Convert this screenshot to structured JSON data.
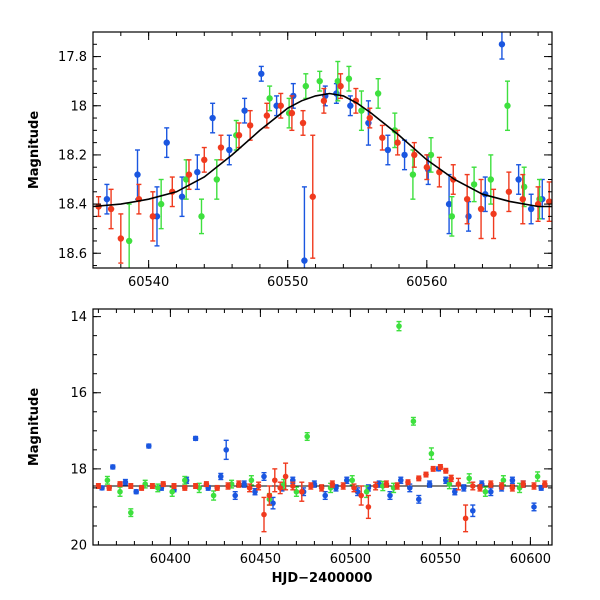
{
  "chart_data": [
    {
      "type": "scatter",
      "panel": "top",
      "title": "",
      "xlabel": "",
      "ylabel": "Magnitude",
      "xlim": [
        60536,
        60569
      ],
      "ylim": [
        18.66,
        17.7
      ],
      "y_inverted": true,
      "x_ticks": [
        60540,
        60550,
        60560
      ],
      "x_tick_labels": [
        "60540",
        "60550",
        "60560"
      ],
      "y_ticks": [
        17.8,
        18.0,
        18.2,
        18.4,
        18.6
      ],
      "y_tick_labels": [
        "17.8",
        "18",
        "18.2",
        "18.4",
        "18.6"
      ],
      "colors": {
        "blue": "#1a56e0",
        "green": "#3ee03e",
        "red": "#f03a1e",
        "model": "#000000"
      },
      "model_curve": {
        "x": [
          60536,
          60538,
          60540,
          60542,
          60544,
          60546,
          60548,
          60550,
          60551,
          60552,
          60553,
          60554,
          60555,
          60556,
          60558,
          60560,
          60562,
          60564,
          60566,
          60568,
          60569
        ],
        "y": [
          18.41,
          18.4,
          18.38,
          18.35,
          18.29,
          18.2,
          18.1,
          18.01,
          17.98,
          17.96,
          17.95,
          17.96,
          17.99,
          18.03,
          18.12,
          18.22,
          18.3,
          18.36,
          18.39,
          18.41,
          18.41
        ]
      },
      "series": [
        {
          "color": "blue",
          "x": [
            60537.0,
            60539.2,
            60540.6,
            60541.3,
            60542.4,
            60543.5,
            60544.6,
            60545.8,
            60546.9,
            60548.1,
            60549.2,
            60550.4,
            60551.2,
            60552.7,
            60553.5,
            60554.5,
            60555.8,
            60557.2,
            60558.4,
            60560.1,
            60561.6,
            60563.0,
            60564.2,
            60565.4,
            60566.6,
            60567.5,
            60568.3
          ],
          "y": [
            18.38,
            18.28,
            18.45,
            18.15,
            18.37,
            18.27,
            18.05,
            18.18,
            18.02,
            17.87,
            18.0,
            17.96,
            18.63,
            17.96,
            17.95,
            18.0,
            18.07,
            18.18,
            18.2,
            18.26,
            18.4,
            18.45,
            18.36,
            17.75,
            18.3,
            18.42,
            18.38
          ],
          "err": [
            0.06,
            0.1,
            0.12,
            0.06,
            0.08,
            0.07,
            0.06,
            0.06,
            0.05,
            0.03,
            0.04,
            0.05,
            0.3,
            0.04,
            0.04,
            0.04,
            0.09,
            0.06,
            0.06,
            0.06,
            0.12,
            0.06,
            0.07,
            0.06,
            0.06,
            0.06,
            0.08
          ]
        },
        {
          "color": "green",
          "x": [
            60538.6,
            60540.9,
            60542.7,
            60543.8,
            60544.9,
            60546.3,
            60548.7,
            60550.1,
            60551.3,
            60552.3,
            60553.6,
            60554.4,
            60555.3,
            60556.5,
            60557.7,
            60559.0,
            60560.3,
            60561.8,
            60563.4,
            60564.6,
            60565.8,
            60567.0,
            60568.1
          ],
          "y": [
            18.55,
            18.4,
            18.3,
            18.45,
            18.3,
            18.12,
            17.97,
            18.03,
            17.92,
            17.9,
            17.9,
            17.89,
            18.02,
            17.95,
            18.1,
            18.28,
            18.2,
            18.45,
            18.32,
            18.3,
            18.0,
            18.33,
            18.38
          ],
          "err": [
            0.15,
            0.1,
            0.08,
            0.07,
            0.08,
            0.06,
            0.05,
            0.06,
            0.05,
            0.04,
            0.08,
            0.05,
            0.08,
            0.06,
            0.07,
            0.1,
            0.07,
            0.08,
            0.07,
            0.1,
            0.1,
            0.08,
            0.08
          ]
        },
        {
          "color": "red",
          "x": [
            60536.4,
            60537.3,
            60538.0,
            60539.3,
            60540.3,
            60541.7,
            60542.9,
            60544.0,
            60545.2,
            60546.5,
            60547.3,
            60548.5,
            60549.5,
            60550.3,
            60551.1,
            60551.8,
            60552.6,
            60553.8,
            60554.9,
            60555.9,
            60556.8,
            60557.9,
            60559.1,
            60560.0,
            60560.9,
            60561.9,
            60562.9,
            60563.9,
            60564.8,
            60565.9,
            60566.9,
            60568.0,
            60568.8
          ],
          "y": [
            18.41,
            18.42,
            18.54,
            18.38,
            18.45,
            18.35,
            18.28,
            18.22,
            18.17,
            18.12,
            18.08,
            18.04,
            18.0,
            18.03,
            18.07,
            18.37,
            17.98,
            17.92,
            17.98,
            18.05,
            18.13,
            18.15,
            18.2,
            18.25,
            18.27,
            18.3,
            18.38,
            18.42,
            18.44,
            18.35,
            18.38,
            18.4,
            18.39
          ],
          "err": [
            0.04,
            0.08,
            0.1,
            0.06,
            0.1,
            0.06,
            0.06,
            0.05,
            0.05,
            0.05,
            0.06,
            0.05,
            0.05,
            0.07,
            0.05,
            0.25,
            0.05,
            0.05,
            0.05,
            0.04,
            0.05,
            0.05,
            0.05,
            0.05,
            0.06,
            0.06,
            0.1,
            0.12,
            0.1,
            0.08,
            0.1,
            0.07,
            0.08
          ]
        }
      ]
    },
    {
      "type": "scatter",
      "panel": "bottom",
      "title": "",
      "xlabel": "HJD−2400000",
      "ylabel": "Magnitude",
      "xlim": [
        60357,
        60612
      ],
      "ylim": [
        20,
        13.8
      ],
      "y_inverted": true,
      "x_ticks": [
        60400,
        60450,
        60500,
        60550,
        60600
      ],
      "x_tick_labels": [
        "60400",
        "60450",
        "60500",
        "60550",
        "60600"
      ],
      "y_ticks": [
        14,
        16,
        18,
        20
      ],
      "y_tick_labels": [
        "14",
        "16",
        "18",
        "20"
      ],
      "baseline_mag": 18.45,
      "colors": {
        "blue": "#1a56e0",
        "green": "#3ee03e",
        "red": "#f03a1e",
        "model": "#000000"
      },
      "series": [
        {
          "color": "blue",
          "x": [
            60362,
            60368,
            60375,
            60381,
            60388,
            60395,
            60402,
            60409,
            60414,
            60421,
            60428,
            60431,
            60436,
            60441,
            60447,
            60452,
            60457,
            60462,
            60468,
            60474,
            60480,
            60486,
            60492,
            60498,
            60504,
            60510,
            60516,
            60522,
            60528,
            60533,
            60538,
            60544,
            60549,
            60553,
            60558,
            60563,
            60568,
            60573,
            60578,
            60584,
            60590,
            60596,
            60602,
            60606
          ],
          "y": [
            18.5,
            17.95,
            18.35,
            18.6,
            17.4,
            18.5,
            18.55,
            18.3,
            17.2,
            18.5,
            18.2,
            17.5,
            18.7,
            18.4,
            18.6,
            18.2,
            18.9,
            18.5,
            18.3,
            18.6,
            18.4,
            18.7,
            18.5,
            18.3,
            18.6,
            18.5,
            18.4,
            18.7,
            18.3,
            18.5,
            18.8,
            18.4,
            18.0,
            18.3,
            18.6,
            18.5,
            19.1,
            18.4,
            18.6,
            18.5,
            18.3,
            18.4,
            19.0,
            18.5
          ],
          "err": [
            0.05,
            0.05,
            0.07,
            0.05,
            0.05,
            0.06,
            0.05,
            0.08,
            0.05,
            0.06,
            0.08,
            0.25,
            0.1,
            0.08,
            0.08,
            0.1,
            0.15,
            0.08,
            0.08,
            0.1,
            0.08,
            0.1,
            0.08,
            0.08,
            0.1,
            0.08,
            0.08,
            0.1,
            0.08,
            0.1,
            0.1,
            0.08,
            0.05,
            0.08,
            0.08,
            0.08,
            0.15,
            0.08,
            0.1,
            0.08,
            0.08,
            0.08,
            0.1,
            0.06
          ]
        },
        {
          "color": "green",
          "x": [
            60365,
            60372,
            60378,
            60386,
            60393,
            60401,
            60408,
            60416,
            60424,
            60434,
            60445,
            60455,
            60463,
            60470,
            60476,
            60489,
            60501,
            60509,
            60518,
            60524,
            60527,
            60535,
            60545,
            60555,
            60566,
            60575,
            60585,
            60594,
            60604
          ],
          "y": [
            18.3,
            18.6,
            19.15,
            18.4,
            18.5,
            18.6,
            18.3,
            18.5,
            18.7,
            18.4,
            18.3,
            18.8,
            18.4,
            18.6,
            17.15,
            18.5,
            18.3,
            18.6,
            18.45,
            18.5,
            14.25,
            16.75,
            17.6,
            18.4,
            18.25,
            18.6,
            18.3,
            18.5,
            18.2
          ],
          "err": [
            0.1,
            0.12,
            0.1,
            0.1,
            0.1,
            0.12,
            0.1,
            0.12,
            0.12,
            0.1,
            0.12,
            0.15,
            0.12,
            0.12,
            0.1,
            0.12,
            0.12,
            0.15,
            0.12,
            0.12,
            0.12,
            0.1,
            0.15,
            0.12,
            0.12,
            0.12,
            0.12,
            0.12,
            0.12
          ]
        },
        {
          "color": "red",
          "x": [
            60360,
            60366,
            60372,
            60378,
            60384,
            60390,
            60396,
            60402,
            60408,
            60414,
            60420,
            60426,
            60432,
            60438,
            60444,
            60449,
            60452,
            60455,
            60458,
            60461,
            60464,
            60468,
            60473,
            60478,
            60484,
            60490,
            60496,
            60502,
            60506,
            60510,
            60514,
            60520,
            60526,
            60532,
            60538,
            60542,
            60546,
            60550,
            60553,
            60556,
            60560,
            60564,
            60568,
            60572,
            60578,
            60584,
            60590,
            60596,
            60602,
            60608
          ],
          "y": [
            18.45,
            18.5,
            18.4,
            18.45,
            18.5,
            18.45,
            18.4,
            18.45,
            18.5,
            18.45,
            18.4,
            18.5,
            18.45,
            18.4,
            18.5,
            18.45,
            19.2,
            18.7,
            18.3,
            18.5,
            18.2,
            18.45,
            18.6,
            18.45,
            18.5,
            18.4,
            18.45,
            18.5,
            18.7,
            19.0,
            18.45,
            18.4,
            18.45,
            18.35,
            18.25,
            18.15,
            18.0,
            17.95,
            18.05,
            18.25,
            18.4,
            19.3,
            18.45,
            18.5,
            18.4,
            18.45,
            18.5,
            18.4,
            18.45,
            18.4
          ],
          "err": [
            0.06,
            0.06,
            0.06,
            0.06,
            0.06,
            0.06,
            0.06,
            0.06,
            0.06,
            0.06,
            0.06,
            0.06,
            0.08,
            0.08,
            0.1,
            0.1,
            0.45,
            0.25,
            0.3,
            0.15,
            0.35,
            0.1,
            0.25,
            0.08,
            0.08,
            0.08,
            0.08,
            0.1,
            0.25,
            0.3,
            0.1,
            0.08,
            0.08,
            0.06,
            0.06,
            0.06,
            0.06,
            0.06,
            0.06,
            0.08,
            0.15,
            0.35,
            0.1,
            0.08,
            0.08,
            0.08,
            0.08,
            0.08,
            0.08,
            0.08
          ]
        }
      ]
    }
  ]
}
